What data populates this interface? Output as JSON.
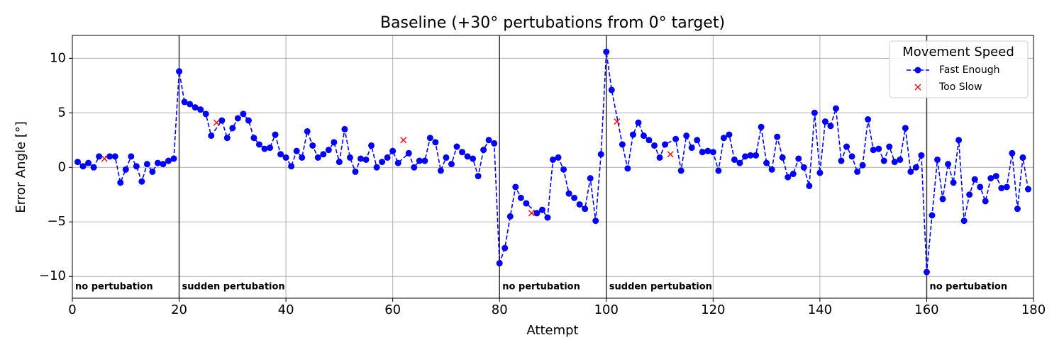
{
  "chart_data": {
    "type": "line",
    "title": "Baseline (+30° pertubations from 0° target)",
    "x_label": "Attempt",
    "y_label": "Error Angle [°]",
    "legend_title": "Movement Speed",
    "legend": "upper right",
    "grid": true,
    "xlim": [
      0,
      180
    ],
    "ylim": [
      -12,
      12.1
    ],
    "xticks": [
      0,
      20,
      40,
      60,
      80,
      100,
      120,
      140,
      160,
      180
    ],
    "yticks": [
      {
        "value": -10,
        "label": "−10"
      },
      {
        "value": -5,
        "label": "−5"
      },
      0,
      5,
      10
    ],
    "phases": [
      {
        "start": 0,
        "label": "no pertubation"
      },
      {
        "start": 20,
        "label": "sudden pertubation"
      },
      {
        "start": 80,
        "label": "no pertubation"
      },
      {
        "start": 100,
        "label": "sudden pertubation"
      },
      {
        "start": 160,
        "label": "no pertubation"
      }
    ],
    "series": [
      {
        "name": "Fast Enough",
        "color": "#0000ff",
        "style": "dashed-circle",
        "x": [
          1,
          2,
          3,
          4,
          5,
          7,
          8,
          9,
          10,
          11,
          12,
          13,
          14,
          15,
          16,
          17,
          18,
          19,
          20,
          21,
          22,
          23,
          24,
          25,
          26,
          28,
          29,
          30,
          31,
          32,
          33,
          34,
          35,
          36,
          37,
          38,
          39,
          40,
          41,
          42,
          43,
          44,
          45,
          46,
          47,
          48,
          49,
          50,
          51,
          52,
          53,
          54,
          55,
          56,
          57,
          58,
          59,
          60,
          61,
          63,
          64,
          65,
          66,
          67,
          68,
          69,
          70,
          71,
          72,
          73,
          74,
          75,
          76,
          77,
          78,
          79,
          80,
          81,
          82,
          83,
          84,
          85,
          87,
          88,
          89,
          90,
          91,
          92,
          93,
          94,
          95,
          96,
          97,
          98,
          99,
          100,
          101,
          103,
          104,
          105,
          106,
          107,
          108,
          109,
          110,
          111,
          113,
          114,
          115,
          116,
          117,
          118,
          119,
          120,
          121,
          122,
          123,
          124,
          125,
          126,
          127,
          128,
          129,
          130,
          131,
          132,
          133,
          134,
          135,
          136,
          137,
          138,
          139,
          140,
          141,
          142,
          143,
          144,
          145,
          146,
          147,
          148,
          149,
          150,
          151,
          152,
          153,
          154,
          155,
          156,
          157,
          158,
          159,
          160,
          161,
          162,
          163,
          164,
          165,
          166,
          167,
          168,
          169,
          170,
          171,
          172,
          173,
          174,
          175,
          176,
          177,
          178,
          179
        ],
        "values": [
          0.5,
          0.1,
          0.4,
          0.0,
          1.0,
          1.0,
          1.0,
          -1.4,
          -0.2,
          1.0,
          0.1,
          -1.3,
          0.3,
          -0.4,
          0.4,
          0.3,
          0.6,
          0.8,
          8.8,
          6.0,
          5.8,
          5.5,
          5.3,
          4.9,
          2.9,
          4.3,
          2.7,
          3.6,
          4.5,
          4.9,
          4.3,
          2.7,
          2.1,
          1.7,
          1.8,
          3.0,
          1.2,
          0.9,
          0.1,
          1.5,
          0.9,
          3.3,
          2.0,
          0.9,
          1.2,
          1.6,
          2.3,
          0.5,
          3.5,
          0.9,
          -0.4,
          0.8,
          0.7,
          2.0,
          0.0,
          0.5,
          0.9,
          1.5,
          0.4,
          1.3,
          0.0,
          0.6,
          0.6,
          2.7,
          2.3,
          -0.3,
          0.9,
          0.3,
          1.9,
          1.4,
          1.0,
          0.8,
          -0.8,
          1.6,
          2.5,
          2.2,
          -8.8,
          -7.4,
          -4.5,
          -1.8,
          -2.8,
          -3.3,
          -4.2,
          -3.9,
          -4.6,
          0.7,
          0.9,
          -0.2,
          -2.4,
          -2.8,
          -3.4,
          -3.8,
          -1.0,
          -4.9,
          1.2,
          10.6,
          7.1,
          2.1,
          -0.1,
          3.0,
          4.1,
          2.9,
          2.5,
          2.0,
          0.9,
          2.1,
          2.6,
          -0.3,
          2.9,
          1.8,
          2.5,
          1.4,
          1.5,
          1.4,
          -0.3,
          2.7,
          3.0,
          0.7,
          0.4,
          1.0,
          1.1,
          1.1,
          3.7,
          0.4,
          -0.2,
          2.8,
          0.9,
          -0.9,
          -0.6,
          0.8,
          0.0,
          -1.7,
          5.0,
          -0.5,
          4.2,
          3.8,
          5.4,
          0.6,
          1.9,
          1.0,
          -0.4,
          0.2,
          4.4,
          1.6,
          1.7,
          0.6,
          1.9,
          0.5,
          0.7,
          3.6,
          -0.4,
          0.0,
          1.1,
          -9.6,
          -4.4,
          0.7,
          -2.9,
          0.3,
          -1.4,
          2.5,
          -4.9,
          -2.5,
          -1.1,
          -1.8,
          -3.1,
          -1.0,
          -0.8,
          -1.9,
          -1.8,
          1.3,
          -3.8,
          0.9,
          -2.0
        ]
      },
      {
        "name": "Too Slow",
        "color": "#ff0000",
        "style": "cross",
        "x": [
          6,
          27,
          62,
          86,
          102,
          112
        ],
        "values": [
          0.8,
          4.1,
          2.5,
          -4.2,
          4.2,
          1.2
        ]
      }
    ]
  }
}
